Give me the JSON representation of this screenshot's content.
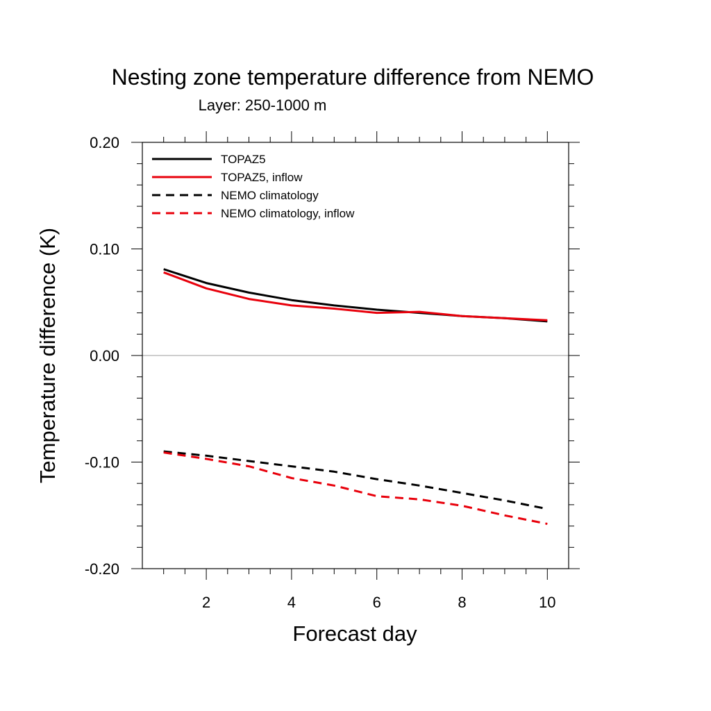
{
  "chart_data": {
    "type": "line",
    "title": "Nesting zone temperature difference from NEMO",
    "subtitle": "Layer: 250-1000 m",
    "xlabel": "Forecast day",
    "ylabel": "Temperature difference (K)",
    "xlim": [
      0.5,
      10.5
    ],
    "ylim": [
      -0.2,
      0.2
    ],
    "xticks": [
      2,
      4,
      6,
      8,
      10
    ],
    "xtick_labels": [
      "2",
      "4",
      "6",
      "8",
      "10"
    ],
    "yticks": [
      -0.2,
      -0.1,
      0.0,
      0.1,
      0.2
    ],
    "ytick_labels": [
      "-0.20",
      "-0.10",
      "0.00",
      "0.10",
      "0.20"
    ],
    "reference_line_y": 0,
    "reference_line_color": "#b0b0b0",
    "grid": false,
    "legend_position": "top-left",
    "x": [
      1,
      2,
      3,
      4,
      5,
      6,
      7,
      8,
      9,
      10
    ],
    "series": [
      {
        "name": "TOPAZ5",
        "color": "#000000",
        "dash": "solid",
        "values": [
          0.081,
          0.068,
          0.059,
          0.052,
          0.047,
          0.043,
          0.04,
          0.037,
          0.035,
          0.032
        ]
      },
      {
        "name": "TOPAZ5, inflow",
        "color": "#e8000b",
        "dash": "solid",
        "values": [
          0.078,
          0.063,
          0.053,
          0.047,
          0.044,
          0.04,
          0.041,
          0.037,
          0.035,
          0.033
        ]
      },
      {
        "name": "NEMO climatology",
        "color": "#000000",
        "dash": "dashed",
        "values": [
          -0.09,
          -0.094,
          -0.099,
          -0.104,
          -0.109,
          -0.116,
          -0.122,
          -0.129,
          -0.136,
          -0.144
        ]
      },
      {
        "name": "NEMO climatology, inflow",
        "color": "#e8000b",
        "dash": "dashed",
        "values": [
          -0.091,
          -0.097,
          -0.104,
          -0.115,
          -0.122,
          -0.132,
          -0.135,
          -0.141,
          -0.15,
          -0.158
        ]
      }
    ]
  }
}
